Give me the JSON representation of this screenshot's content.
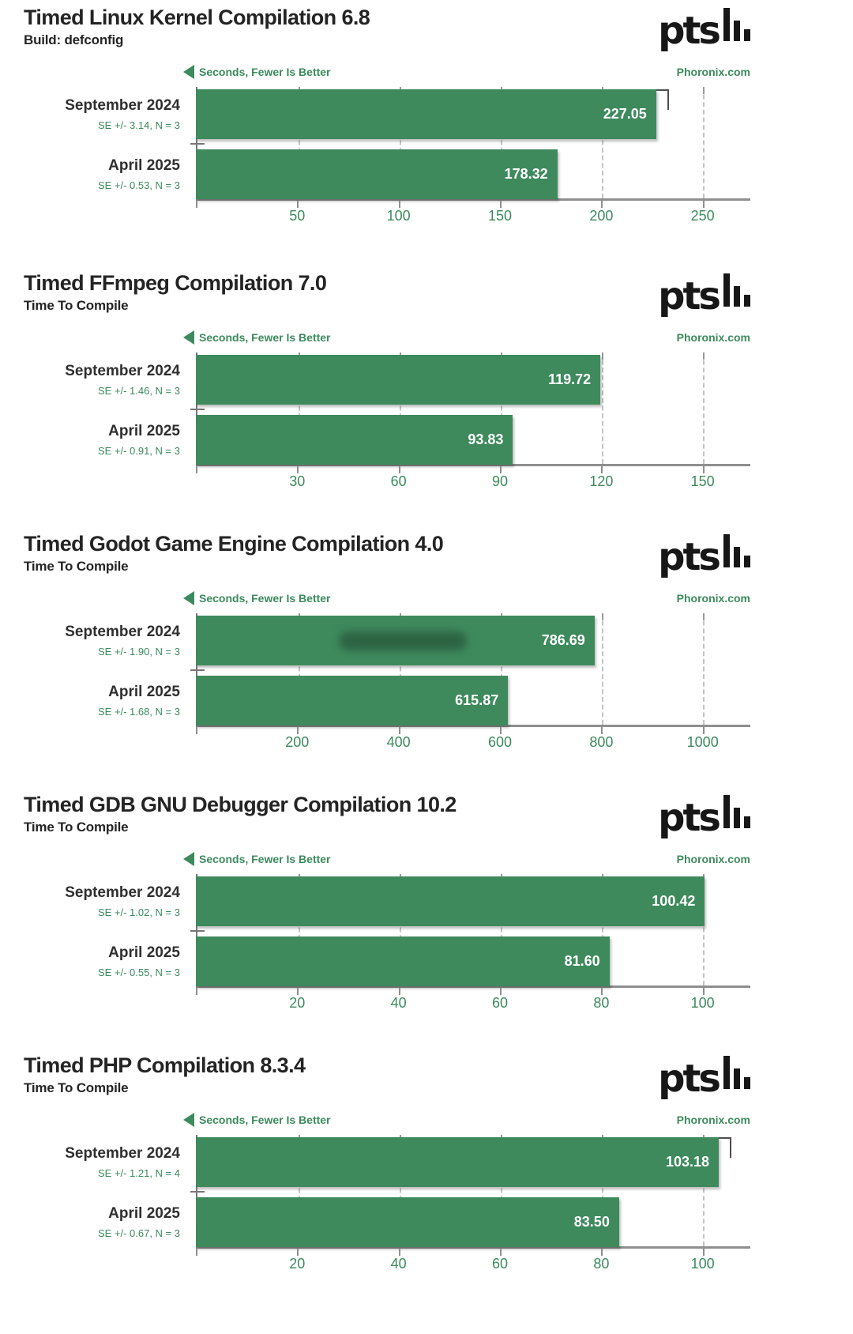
{
  "branding": {
    "logo_text": "pts"
  },
  "colors": {
    "bar_green": "#3e8a5d",
    "accent_green": "#3c8a5d",
    "title_dark": "#242424",
    "axis_gray": "#8f8f8f",
    "grid_gray": "#c4c4c4",
    "value_text": "#ffffff",
    "logo_black": "#171717"
  },
  "chart_data": [
    {
      "type": "bar",
      "orientation": "horizontal",
      "title": "Timed Linux Kernel Compilation 6.8",
      "subtitle": "Build: defconfig",
      "xlabel_note": "Seconds, Fewer Is Better",
      "site": "Phoronix.com",
      "unit": "Seconds",
      "lower_is_better": true,
      "categories": [
        "September 2024",
        "April 2025"
      ],
      "values": [
        227.05,
        178.32
      ],
      "value_labels": [
        "227.05",
        "178.32"
      ],
      "se_values": [
        3.14,
        0.53
      ],
      "se_labels": [
        "SE +/- 3.14, N = 3",
        "SE +/- 0.53, N = 3"
      ],
      "error_caps": [
        true,
        false
      ],
      "smudges": [
        false,
        false
      ],
      "ticks": [
        50,
        100,
        150,
        200,
        250
      ],
      "xlim": [
        0,
        273.5
      ],
      "grid": "vertical-dashed",
      "legend_position": "none"
    },
    {
      "type": "bar",
      "orientation": "horizontal",
      "title": "Timed FFmpeg Compilation 7.0",
      "subtitle": "Time To Compile",
      "xlabel_note": "Seconds, Fewer Is Better",
      "site": "Phoronix.com",
      "unit": "Seconds",
      "lower_is_better": true,
      "categories": [
        "September 2024",
        "April 2025"
      ],
      "values": [
        119.72,
        93.83
      ],
      "value_labels": [
        "119.72",
        "93.83"
      ],
      "se_values": [
        1.46,
        0.91
      ],
      "se_labels": [
        "SE +/- 1.46, N = 3",
        "SE +/- 0.91, N = 3"
      ],
      "error_caps": [
        false,
        false
      ],
      "smudges": [
        false,
        false
      ],
      "ticks": [
        30,
        60,
        90,
        120,
        150
      ],
      "xlim": [
        0,
        164.1
      ],
      "grid": "vertical-dashed",
      "legend_position": "none"
    },
    {
      "type": "bar",
      "orientation": "horizontal",
      "title": "Timed Godot Game Engine Compilation 4.0",
      "subtitle": "Time To Compile",
      "xlabel_note": "Seconds, Fewer Is Better",
      "site": "Phoronix.com",
      "unit": "Seconds",
      "lower_is_better": true,
      "categories": [
        "September 2024",
        "April 2025"
      ],
      "values": [
        786.69,
        615.87
      ],
      "value_labels": [
        "786.69",
        "615.87"
      ],
      "se_values": [
        1.9,
        1.68
      ],
      "se_labels": [
        "SE +/- 1.90, N = 3",
        "SE +/- 1.68, N = 3"
      ],
      "error_caps": [
        false,
        false
      ],
      "smudges": [
        true,
        false
      ],
      "ticks": [
        200,
        400,
        600,
        800,
        1000
      ],
      "xlim": [
        0,
        1094
      ],
      "grid": "vertical-dashed",
      "legend_position": "none"
    },
    {
      "type": "bar",
      "orientation": "horizontal",
      "title": "Timed GDB GNU Debugger Compilation 10.2",
      "subtitle": "Time To Compile",
      "xlabel_note": "Seconds, Fewer Is Better",
      "site": "Phoronix.com",
      "unit": "Seconds",
      "lower_is_better": true,
      "categories": [
        "September 2024",
        "April 2025"
      ],
      "values": [
        100.42,
        81.6
      ],
      "value_labels": [
        "100.42",
        "81.60"
      ],
      "se_values": [
        1.02,
        0.55
      ],
      "se_labels": [
        "SE +/- 1.02, N = 3",
        "SE +/- 0.55, N = 3"
      ],
      "error_caps": [
        false,
        false
      ],
      "smudges": [
        false,
        false
      ],
      "ticks": [
        20,
        40,
        60,
        80,
        100
      ],
      "xlim": [
        0,
        109.4
      ],
      "grid": "vertical-dashed",
      "legend_position": "none"
    },
    {
      "type": "bar",
      "orientation": "horizontal",
      "title": "Timed PHP Compilation 8.3.4",
      "subtitle": "Time To Compile",
      "xlabel_note": "Seconds, Fewer Is Better",
      "site": "Phoronix.com",
      "unit": "Seconds",
      "lower_is_better": true,
      "categories": [
        "September 2024",
        "April 2025"
      ],
      "values": [
        103.18,
        83.5
      ],
      "value_labels": [
        "103.18",
        "83.50"
      ],
      "se_values": [
        1.21,
        0.67
      ],
      "se_labels": [
        "SE +/- 1.21, N = 4",
        "SE +/- 0.67, N = 3"
      ],
      "error_caps": [
        true,
        false
      ],
      "smudges": [
        false,
        false
      ],
      "ticks": [
        20,
        40,
        60,
        80,
        100
      ],
      "xlim": [
        0,
        109.4
      ],
      "grid": "vertical-dashed",
      "legend_position": "none"
    }
  ]
}
